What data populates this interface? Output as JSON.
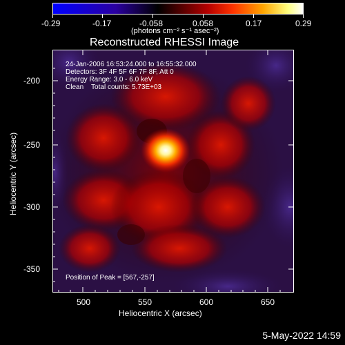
{
  "colorbar": {
    "ticks": [
      "-0.29",
      "-0.17",
      "-0.058",
      "0.058",
      "0.17",
      "0.29"
    ],
    "units_label": "(photons cm⁻² s⁻¹ asec⁻²)",
    "gradient_colors": [
      "#0000ff",
      "#2a00a0",
      "#000000",
      "#5a0000",
      "#b50000",
      "#ff3300",
      "#ffa500",
      "#ffff80",
      "#ffffff"
    ]
  },
  "plot": {
    "title": "Reconstructed RHESSI Image",
    "xlabel": "Heliocentric X (arcsec)",
    "ylabel": "Heliocentric Y (arcsec)",
    "x_ticks": [
      "500",
      "550",
      "600",
      "650"
    ],
    "y_ticks": [
      "-200",
      "-250",
      "-300",
      "-350"
    ]
  },
  "annotations": {
    "time_range": "24-Jan-2006 16:53:24.000 to 16:55:32.000",
    "detectors": "Detectors: 3F 4F 5F 6F 7F 8F, Att 0",
    "energy": "Energy Range: 3.0 - 6.0 keV",
    "clean": "Clean    Total counts: 5.73E+03",
    "peak": "Position of Peak = [567,-257]"
  },
  "footer": {
    "date": "5-May-2022 14:59"
  }
}
